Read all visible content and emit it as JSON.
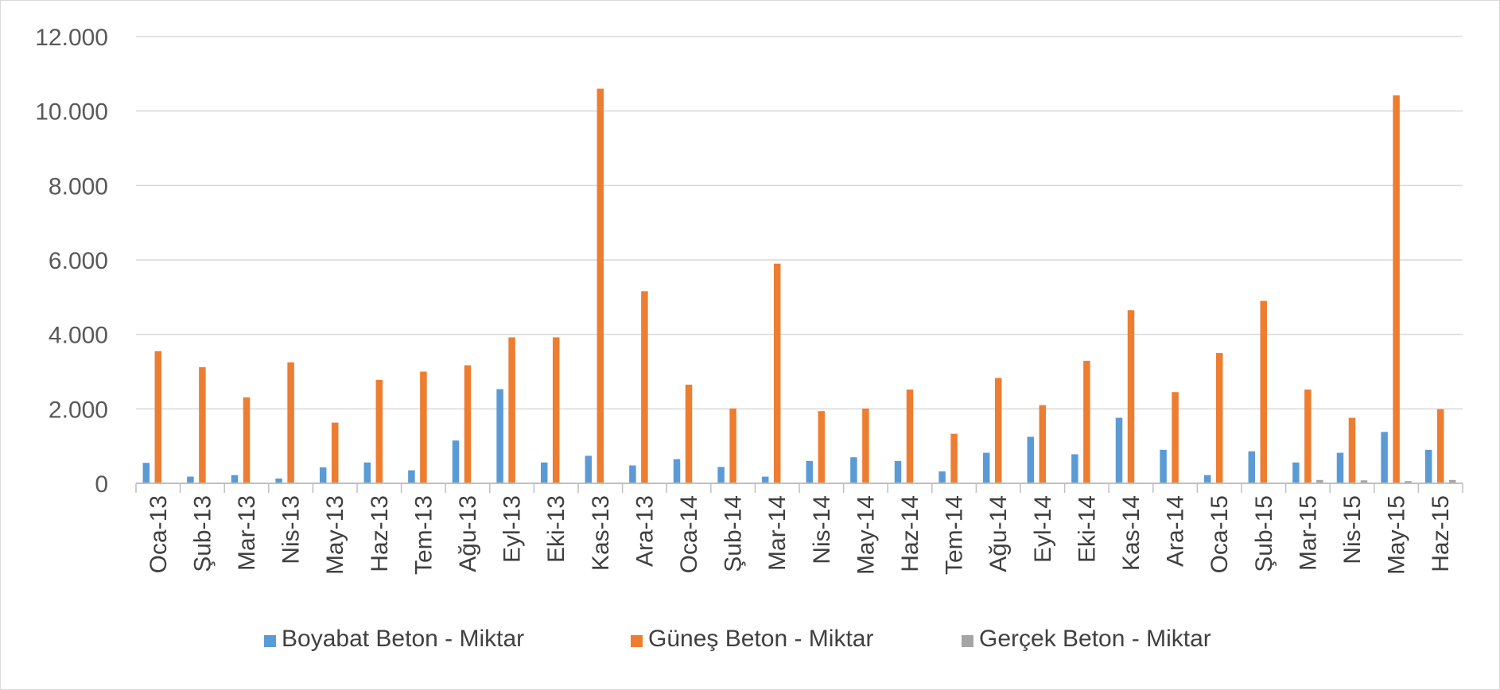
{
  "chart_data": {
    "type": "bar",
    "title": "",
    "xlabel": "",
    "ylabel": "",
    "ylim": [
      0,
      12000
    ],
    "y_ticks": [
      "0",
      "2.000",
      "4.000",
      "6.000",
      "8.000",
      "10.000",
      "12.000"
    ],
    "y_tick_values": [
      0,
      2000,
      4000,
      6000,
      8000,
      10000,
      12000
    ],
    "grid": true,
    "legend_position": "bottom",
    "categories": [
      "Oca-13",
      "Şub-13",
      "Mar-13",
      "Nis-13",
      "May-13",
      "Haz-13",
      "Tem-13",
      "Ağu-13",
      "Eyl-13",
      "Eki-13",
      "Kas-13",
      "Ara-13",
      "Oca-14",
      "Şub-14",
      "Mar-14",
      "Nis-14",
      "May-14",
      "Haz-14",
      "Tem-14",
      "Ağu-14",
      "Eyl-14",
      "Eki-14",
      "Kas-14",
      "Ara-14",
      "Oca-15",
      "Şub-15",
      "Mar-15",
      "Nis-15",
      "May-15",
      "Haz-15"
    ],
    "series": [
      {
        "name": "Boyabat Beton - Miktar",
        "color": "#5b9bd5",
        "values": [
          550,
          180,
          220,
          130,
          430,
          560,
          350,
          1150,
          2530,
          560,
          740,
          480,
          650,
          440,
          180,
          600,
          700,
          600,
          320,
          820,
          1250,
          780,
          1760,
          900,
          220,
          860,
          560,
          820,
          1380,
          900
        ]
      },
      {
        "name": "Güneş Beton - Miktar",
        "color": "#ed7d31",
        "values": [
          3550,
          3120,
          2310,
          3250,
          1630,
          2780,
          3000,
          3170,
          3920,
          3920,
          10600,
          5160,
          2650,
          2010,
          5900,
          1940,
          2010,
          2520,
          1330,
          2830,
          2100,
          3290,
          4650,
          2450,
          3500,
          4900,
          2520,
          1760,
          10420,
          1990
        ]
      },
      {
        "name": "Gerçek Beton - Miktar",
        "color": "#a5a5a5",
        "values": [
          0,
          0,
          0,
          0,
          0,
          0,
          0,
          0,
          0,
          0,
          0,
          0,
          0,
          0,
          0,
          0,
          0,
          0,
          0,
          0,
          0,
          0,
          0,
          0,
          0,
          0,
          90,
          80,
          60,
          90
        ]
      }
    ]
  }
}
